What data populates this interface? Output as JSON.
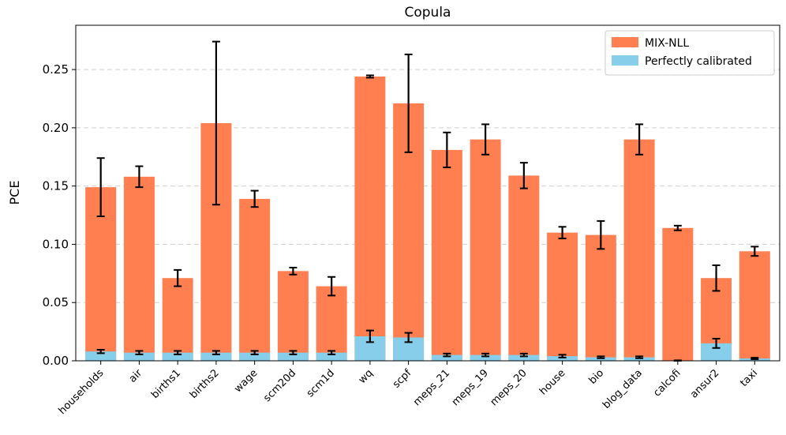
{
  "chart_data": {
    "type": "bar",
    "title": "Copula",
    "xlabel": "",
    "ylabel": "PCE",
    "ylim": [
      0,
      0.288
    ],
    "yticks": [
      0.0,
      0.05,
      0.1,
      0.15,
      0.2,
      0.25
    ],
    "ytick_labels": [
      "0.00",
      "0.05",
      "0.10",
      "0.15",
      "0.20",
      "0.25"
    ],
    "grid": "y-dashed",
    "legend_position": "top-right",
    "categories": [
      "households",
      "air",
      "births1",
      "births2",
      "wage",
      "scm20d",
      "scm1d",
      "wq",
      "scpf",
      "meps_21",
      "meps_19",
      "meps_20",
      "house",
      "bio",
      "blog_data",
      "calcofi",
      "ansur2",
      "taxi"
    ],
    "series": [
      {
        "name": "MIX-NLL",
        "color": "#ff7f50",
        "values": [
          0.149,
          0.158,
          0.071,
          0.204,
          0.139,
          0.077,
          0.064,
          0.244,
          0.221,
          0.181,
          0.19,
          0.159,
          0.11,
          0.108,
          0.19,
          0.114,
          0.071,
          0.094
        ],
        "errors": [
          0.025,
          0.009,
          0.007,
          0.07,
          0.007,
          0.003,
          0.008,
          0.001,
          0.042,
          0.015,
          0.013,
          0.011,
          0.005,
          0.012,
          0.013,
          0.002,
          0.011,
          0.004
        ]
      },
      {
        "name": "Perfectly calibrated",
        "color": "#87ceeb",
        "values": [
          0.008,
          0.007,
          0.007,
          0.007,
          0.007,
          0.007,
          0.007,
          0.021,
          0.02,
          0.005,
          0.005,
          0.005,
          0.004,
          0.003,
          0.003,
          0.0,
          0.015,
          0.002
        ],
        "errors": [
          0.0015,
          0.0015,
          0.0015,
          0.0015,
          0.0015,
          0.0015,
          0.0015,
          0.005,
          0.004,
          0.0012,
          0.0012,
          0.0012,
          0.0012,
          0.0008,
          0.0008,
          0.0004,
          0.004,
          0.0006
        ]
      }
    ]
  }
}
